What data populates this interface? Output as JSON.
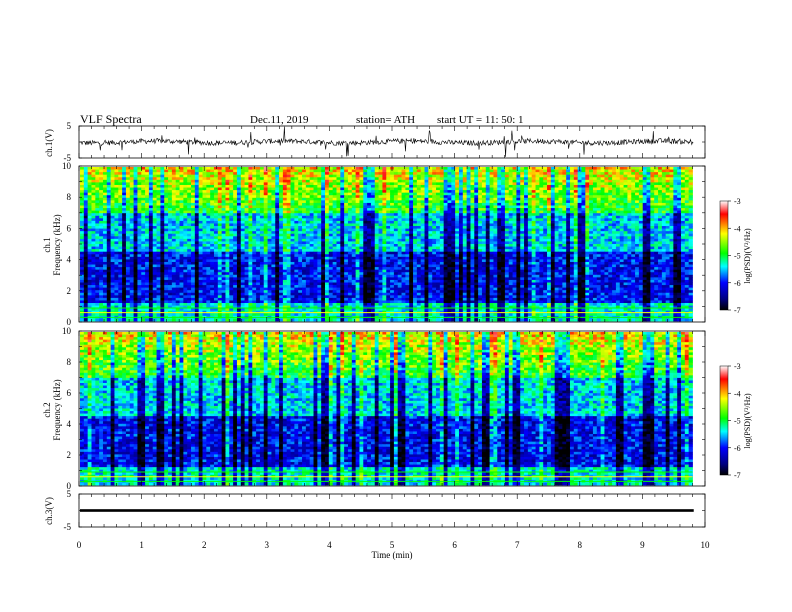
{
  "header": {
    "title": "VLF  Spectra",
    "date": "Dec.11, 2019",
    "station": "station= ATH",
    "start": "start  UT  =    11: 50: 1"
  },
  "chart_data": [
    {
      "type": "line",
      "name": "ch1-waveform",
      "ylabel": "ch.1(V)",
      "ylim": [
        -5,
        5
      ],
      "yticks": [
        "5",
        "-5"
      ],
      "xlim": [
        0,
        10
      ]
    },
    {
      "type": "heatmap",
      "name": "ch1-spectrogram",
      "ylabel": "ch.1\nFrequency (kHz)",
      "ylabel_lines": [
        "ch.1",
        "Frequency (kHz)"
      ],
      "ylim": [
        0,
        10
      ],
      "yticks": [
        "0",
        "2",
        "4",
        "6",
        "8",
        "10"
      ],
      "xlim": [
        0,
        10
      ],
      "data_xrange": [
        0,
        9.8
      ],
      "colorbar": {
        "label": "log(PSD)(V²/Hz)",
        "range": [
          -7,
          -3
        ],
        "ticks": [
          "-3",
          "-4",
          "-5",
          "-6",
          "-7"
        ],
        "colors": [
          "#ffffff",
          "#ff0000",
          "#ffff00",
          "#00ff00",
          "#00ffff",
          "#0000ff",
          "#000080",
          "#000000"
        ]
      }
    },
    {
      "type": "heatmap",
      "name": "ch2-spectrogram",
      "ylabel": "ch.2\nFrequency (kHz)",
      "ylabel_lines": [
        "ch.2",
        "Frequency (kHz)"
      ],
      "ylim": [
        0,
        10
      ],
      "yticks": [
        "0",
        "2",
        "4",
        "6",
        "8",
        "10"
      ],
      "xlim": [
        0,
        10
      ],
      "data_xrange": [
        0,
        9.8
      ],
      "colorbar": {
        "label": "log(PSD)(V²/Hz)",
        "range": [
          -7,
          -3
        ],
        "ticks": [
          "-3",
          "-4",
          "-5",
          "-6",
          "-7"
        ],
        "colors": [
          "#ffffff",
          "#ff0000",
          "#ffff00",
          "#00ff00",
          "#00ffff",
          "#0000ff",
          "#000080",
          "#000000"
        ]
      }
    },
    {
      "type": "line",
      "name": "ch3-waveform",
      "ylabel": "ch.3(V)",
      "ylim": [
        -5,
        5
      ],
      "yticks": [
        "5",
        "-5"
      ],
      "xlim": [
        0,
        10
      ],
      "xlabel": "Time  (min)",
      "xticks": [
        "0",
        "1",
        "2",
        "3",
        "4",
        "5",
        "6",
        "7",
        "8",
        "9",
        "10"
      ]
    }
  ]
}
